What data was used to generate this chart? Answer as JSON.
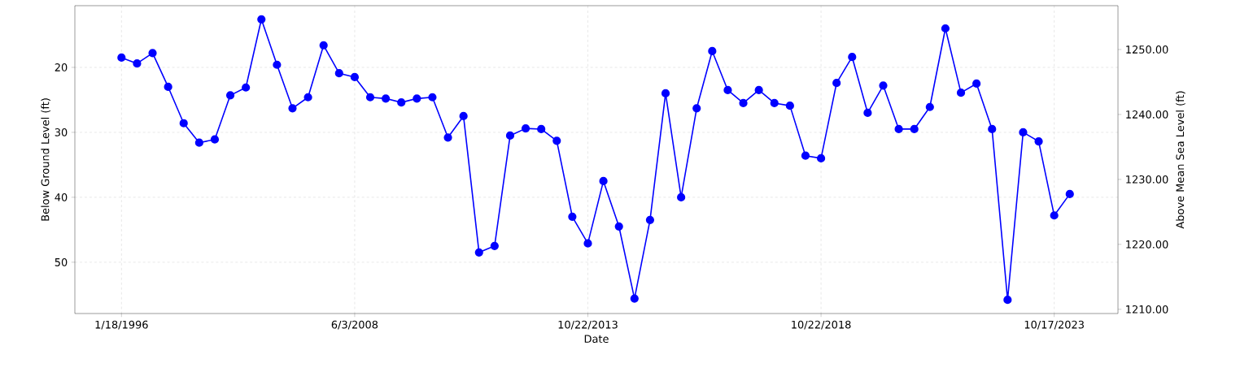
{
  "chart_data": {
    "type": "line",
    "xlabel": "Date",
    "ylabel": "Below Ground Level (ft)",
    "y2label": "Above Mean Sea Level (ft)",
    "categories": [
      "1/18/1996",
      null,
      null,
      null,
      null,
      null,
      null,
      null,
      null,
      null,
      null,
      null,
      null,
      null,
      null,
      "6/3/2008",
      null,
      null,
      null,
      null,
      null,
      null,
      null,
      null,
      null,
      null,
      null,
      null,
      null,
      null,
      "10/22/2013",
      null,
      null,
      null,
      null,
      null,
      null,
      null,
      null,
      null,
      null,
      null,
      null,
      null,
      null,
      "10/22/2018",
      null,
      null,
      null,
      null,
      null,
      null,
      null,
      null,
      null,
      null,
      null,
      null,
      null,
      null,
      "10/17/2023",
      null
    ],
    "series": [
      {
        "color": "#0000ff",
        "values": [
          18.5,
          19.4,
          17.8,
          23.0,
          28.6,
          31.6,
          31.1,
          24.3,
          23.1,
          12.6,
          19.6,
          26.3,
          24.6,
          16.6,
          20.9,
          21.5,
          24.6,
          24.8,
          25.4,
          24.8,
          24.6,
          30.8,
          27.5,
          48.5,
          47.5,
          30.5,
          29.4,
          29.5,
          31.3,
          43.0,
          47.1,
          37.5,
          44.5,
          55.6,
          43.5,
          24.0,
          40.0,
          26.3,
          17.5,
          23.5,
          25.5,
          23.5,
          25.5,
          25.9,
          33.6,
          34.0,
          22.4,
          18.4,
          27.0,
          22.8,
          29.5,
          29.5,
          26.1,
          14.0,
          23.9,
          22.5,
          29.5,
          55.8,
          30.0,
          31.4,
          42.8,
          39.5
        ]
      }
    ],
    "ylim": [
      57.9,
      10.5
    ],
    "yticks": [
      20,
      30,
      40,
      50
    ],
    "y2lim": [
      1209.35,
      1256.75
    ],
    "y2ticks": [
      {
        "value": 1210,
        "label": "1210.00"
      },
      {
        "value": 1220,
        "label": "1220.00"
      },
      {
        "value": 1230,
        "label": "1230.00"
      },
      {
        "value": 1240,
        "label": "1240.00"
      },
      {
        "value": 1250,
        "label": "1250.00"
      }
    ],
    "grid": true,
    "marker": "circle",
    "line_style": "solid"
  }
}
